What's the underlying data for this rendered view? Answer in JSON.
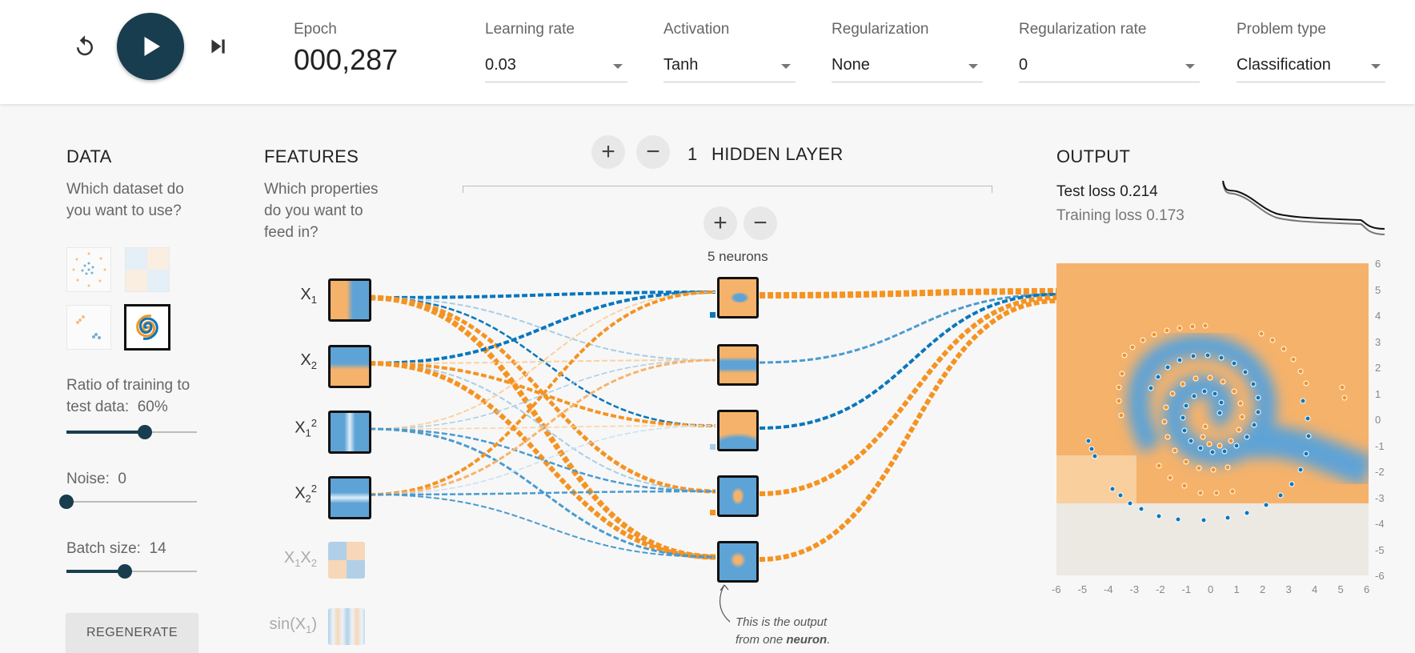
{
  "toolbar": {
    "epoch_label": "Epoch",
    "epoch_value": "000,287",
    "learning_rate": {
      "label": "Learning rate",
      "value": "0.03"
    },
    "activation": {
      "label": "Activation",
      "value": "Tanh"
    },
    "regularization": {
      "label": "Regularization",
      "value": "None"
    },
    "regularization_rate": {
      "label": "Regularization rate",
      "value": "0"
    },
    "problem_type": {
      "label": "Problem type",
      "value": "Classification"
    }
  },
  "data_panel": {
    "title": "DATA",
    "question": "Which dataset do you want to use?",
    "ratio_label": "Ratio of training to test data:",
    "ratio_value": "60%",
    "ratio_fraction": 0.6,
    "noise_label": "Noise:",
    "noise_value": "0",
    "noise_fraction": 0.0,
    "batch_label": "Batch size:",
    "batch_value": "14",
    "batch_fraction": 0.45,
    "regenerate": "REGENERATE"
  },
  "features_panel": {
    "title": "FEATURES",
    "question": "Which properties do you want to feed in?",
    "features": [
      {
        "base": "X",
        "sub": "1",
        "sup": ""
      },
      {
        "base": "X",
        "sub": "2",
        "sup": ""
      },
      {
        "base": "X",
        "sub": "1",
        "sup": "2"
      },
      {
        "base": "X",
        "sub": "2",
        "sup": "2"
      }
    ],
    "inactive_features": [
      "X1X2",
      "sin(X1)"
    ]
  },
  "hidden": {
    "count": "1",
    "label": "HIDDEN LAYER",
    "neurons_label": "5 neurons",
    "note_line1": "This is the output",
    "note_line2_prefix": "from one ",
    "note_line2_bold": "neuron",
    "note_line2_suffix": "."
  },
  "output": {
    "title": "OUTPUT",
    "test_loss": "Test loss 0.214",
    "training_loss": "Training loss 0.173",
    "x_ticks": [
      "-6",
      "-5",
      "-4",
      "-3",
      "-2",
      "-1",
      "0",
      "1",
      "2",
      "3",
      "4",
      "5",
      "6"
    ],
    "y_ticks": [
      "6",
      "5",
      "4",
      "3",
      "2",
      "1",
      "0",
      "-1",
      "-2",
      "-3",
      "-4",
      "-5",
      "-6"
    ]
  },
  "colors": {
    "orange": "#f59322",
    "blue": "#0877bd",
    "dark": "#183d4e"
  }
}
